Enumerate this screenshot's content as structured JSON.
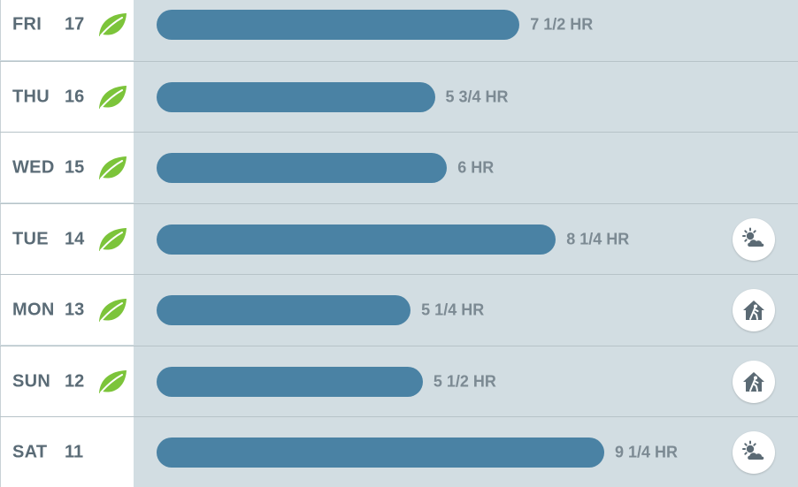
{
  "colors": {
    "bar": "#4a82a4",
    "leaf": "#7cc43a",
    "label": "#5a6b76",
    "hours": "#7c8a93",
    "panel": "#d2dde2"
  },
  "scale_max_hours": 12,
  "rows": [
    {
      "day": "FRI",
      "date": "17",
      "hours_label": "7 1/2 HR",
      "hours": 7.5,
      "leaf": true,
      "badge": null
    },
    {
      "day": "THU",
      "date": "16",
      "hours_label": "5 3/4 HR",
      "hours": 5.75,
      "leaf": true,
      "badge": null
    },
    {
      "day": "WED",
      "date": "15",
      "hours_label": "6 HR",
      "hours": 6,
      "leaf": true,
      "badge": null
    },
    {
      "day": "TUE",
      "date": "14",
      "hours_label": "8 1/4 HR",
      "hours": 8.25,
      "leaf": true,
      "badge": "weather-icon"
    },
    {
      "day": "MON",
      "date": "13",
      "hours_label": "5 1/4 HR",
      "hours": 5.25,
      "leaf": true,
      "badge": "away-icon"
    },
    {
      "day": "SUN",
      "date": "12",
      "hours_label": "5 1/2 HR",
      "hours": 5.5,
      "leaf": true,
      "badge": "away-icon"
    },
    {
      "day": "SAT",
      "date": "11",
      "hours_label": "9 1/4 HR",
      "hours": 9.25,
      "leaf": false,
      "badge": "weather-icon"
    }
  ]
}
